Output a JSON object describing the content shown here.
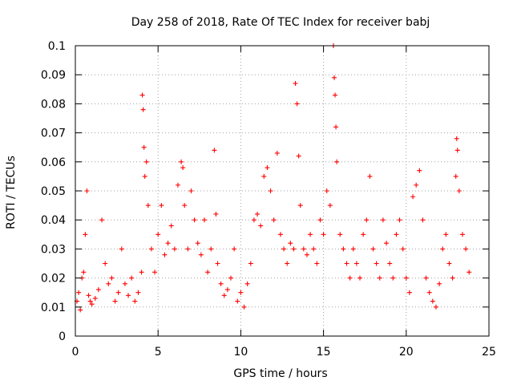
{
  "chart_data": {
    "type": "scatter",
    "title": "Day 258 of 2018, Rate Of TEC Index for receiver babj",
    "xlabel": "GPS time / hours",
    "ylabel": "ROTI / TECUs",
    "xlim": [
      0,
      25
    ],
    "ylim": [
      0,
      0.1
    ],
    "xticks": [
      0,
      5,
      10,
      15,
      20,
      25
    ],
    "yticks": [
      0,
      0.01,
      0.02,
      0.03,
      0.04,
      0.05,
      0.06,
      0.07,
      0.08,
      0.09,
      0.1
    ],
    "xtick_labels": [
      "0",
      "5",
      "10",
      "15",
      "20",
      "25"
    ],
    "ytick_labels": [
      "0",
      "0.01",
      "0.02",
      "0.03",
      "0.04",
      "0.05",
      "0.06",
      "0.07",
      "0.08",
      "0.09",
      "0.1"
    ],
    "grid": true,
    "marker": "+",
    "color": "#ff0000",
    "series": [
      {
        "x": [
          0.1,
          0.2,
          0.3,
          0.4,
          0.5,
          0.6,
          0.7,
          0.8,
          0.9,
          1.0,
          1.2,
          1.4,
          1.6,
          1.8,
          2.0,
          2.2,
          2.4,
          2.6,
          2.8,
          3.0,
          3.2,
          3.4,
          3.6,
          3.8,
          4.0,
          4.05,
          4.1,
          4.15,
          4.2,
          4.3,
          4.4,
          4.6,
          4.8,
          5.0,
          5.2,
          5.4,
          5.6,
          5.8,
          6.0,
          6.2,
          6.4,
          6.5,
          6.6,
          6.8,
          7.0,
          7.2,
          7.4,
          7.6,
          7.8,
          8.0,
          8.2,
          8.4,
          8.5,
          8.6,
          8.8,
          9.0,
          9.2,
          9.4,
          9.6,
          9.8,
          10.0,
          10.2,
          10.4,
          10.6,
          10.8,
          11.0,
          11.2,
          11.4,
          11.6,
          11.8,
          12.0,
          12.2,
          12.4,
          12.6,
          12.8,
          13.0,
          13.2,
          13.3,
          13.4,
          13.5,
          13.6,
          13.8,
          14.0,
          14.2,
          14.4,
          14.6,
          14.8,
          15.0,
          15.2,
          15.4,
          15.6,
          15.65,
          15.7,
          15.75,
          15.8,
          16.0,
          16.2,
          16.4,
          16.6,
          16.8,
          17.0,
          17.2,
          17.4,
          17.6,
          17.8,
          18.0,
          18.2,
          18.4,
          18.6,
          18.8,
          19.0,
          19.2,
          19.4,
          19.6,
          19.8,
          20.0,
          20.2,
          20.4,
          20.6,
          20.8,
          21.0,
          21.2,
          21.4,
          21.6,
          21.8,
          22.0,
          22.2,
          22.4,
          22.6,
          22.8,
          23.0,
          23.05,
          23.1,
          23.2,
          23.4,
          23.6,
          23.8
        ],
        "y": [
          0.012,
          0.015,
          0.009,
          0.02,
          0.022,
          0.035,
          0.05,
          0.014,
          0.012,
          0.011,
          0.013,
          0.016,
          0.04,
          0.025,
          0.018,
          0.02,
          0.012,
          0.015,
          0.03,
          0.018,
          0.014,
          0.02,
          0.012,
          0.015,
          0.022,
          0.083,
          0.078,
          0.065,
          0.055,
          0.06,
          0.045,
          0.03,
          0.022,
          0.035,
          0.045,
          0.028,
          0.032,
          0.038,
          0.03,
          0.052,
          0.06,
          0.058,
          0.045,
          0.03,
          0.05,
          0.04,
          0.032,
          0.028,
          0.04,
          0.022,
          0.03,
          0.064,
          0.042,
          0.025,
          0.018,
          0.014,
          0.016,
          0.02,
          0.03,
          0.012,
          0.015,
          0.01,
          0.018,
          0.025,
          0.04,
          0.042,
          0.038,
          0.055,
          0.058,
          0.05,
          0.04,
          0.063,
          0.035,
          0.03,
          0.025,
          0.032,
          0.03,
          0.087,
          0.08,
          0.062,
          0.045,
          0.03,
          0.028,
          0.035,
          0.03,
          0.025,
          0.04,
          0.035,
          0.05,
          0.045,
          0.1,
          0.089,
          0.083,
          0.072,
          0.06,
          0.035,
          0.03,
          0.025,
          0.02,
          0.03,
          0.025,
          0.02,
          0.035,
          0.04,
          0.055,
          0.03,
          0.025,
          0.02,
          0.04,
          0.032,
          0.025,
          0.02,
          0.035,
          0.04,
          0.03,
          0.02,
          0.015,
          0.048,
          0.052,
          0.057,
          0.04,
          0.02,
          0.015,
          0.012,
          0.01,
          0.018,
          0.03,
          0.035,
          0.025,
          0.02,
          0.055,
          0.068,
          0.064,
          0.05,
          0.035,
          0.03,
          0.022
        ]
      }
    ]
  }
}
